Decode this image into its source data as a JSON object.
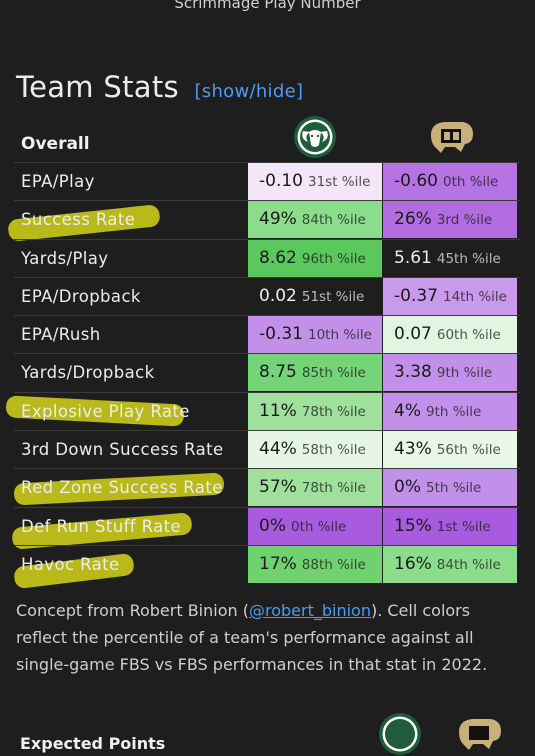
{
  "top_caption": "Scrimmage Play Number",
  "section_title": "Team Stats",
  "toggle_label": "[show/hide]",
  "table_header": "Overall",
  "rows": [
    {
      "name": "EPA/Play",
      "a_val": "-0.10",
      "a_pct": "31st %ile",
      "b_val": "-0.60",
      "b_pct": "0th %ile",
      "a_color": "#f2e6f8",
      "b_color": "#b573e4"
    },
    {
      "name": "Success Rate",
      "a_val": "49%",
      "a_pct": "84th %ile",
      "b_val": "26%",
      "b_pct": "3rd %ile",
      "a_color": "#8bdc8b",
      "b_color": "#b16de0"
    },
    {
      "name": "Yards/Play",
      "a_val": "8.62",
      "a_pct": "96th %ile",
      "b_val": "5.61",
      "b_pct": "45th %ile",
      "a_color": "#5ac85d",
      "b_color": "#1e1e1f"
    },
    {
      "name": "EPA/Dropback",
      "a_val": "0.02",
      "a_pct": "51st %ile",
      "b_val": "-0.37",
      "b_pct": "14th %ile",
      "a_color": "#1e1e1f",
      "b_color": "#c999ec"
    },
    {
      "name": "EPA/Rush",
      "a_val": "-0.31",
      "a_pct": "10th %ile",
      "b_val": "0.07",
      "b_pct": "60th %ile",
      "a_color": "#c290e9",
      "b_color": "#e2f5e1"
    },
    {
      "name": "Yards/Dropback",
      "a_val": "8.75",
      "a_pct": "85th %ile",
      "b_val": "3.38",
      "b_pct": "9th %ile",
      "a_color": "#74d477",
      "b_color": "#c290e9"
    },
    {
      "name": "Explosive Play Rate",
      "a_val": "11%",
      "a_pct": "78th %ile",
      "b_val": "4%",
      "b_pct": "9th %ile",
      "a_color": "#9ee09c",
      "b_color": "#c290e9"
    },
    {
      "name": "3rd Down Success Rate",
      "a_val": "44%",
      "a_pct": "58th %ile",
      "b_val": "43%",
      "b_pct": "56th %ile",
      "a_color": "#e6f6e4",
      "b_color": "#e8f7e6"
    },
    {
      "name": "Red Zone Success Rate",
      "a_val": "57%",
      "a_pct": "78th %ile",
      "b_val": "0%",
      "b_pct": "5th %ile",
      "a_color": "#9ee09c",
      "b_color": "#c290e9"
    },
    {
      "name": "Def Run Stuff Rate",
      "a_val": "0%",
      "a_pct": "0th %ile",
      "b_val": "15%",
      "b_pct": "1st %ile",
      "a_color": "#a85bde",
      "b_color": "#a85bde"
    },
    {
      "name": "Havoc Rate",
      "a_val": "17%",
      "a_pct": "88th %ile",
      "b_val": "16%",
      "b_pct": "84th %ile",
      "a_color": "#6fd26f",
      "b_color": "#8bdc8b"
    }
  ],
  "footnote_pre": "Concept from Robert Binion (",
  "footnote_link": "@robert_binion",
  "footnote_post": "). Cell colors reflect the percentile of a team's performance against all single-game FBS vs FBS performances in that stat in 2022.",
  "next_section": "Expected Points",
  "colors": {
    "link": "#4a9cf5",
    "highlight": "#e6e61a",
    "csu_green": "#1e5c3a"
  },
  "icons": {
    "team_a": "csu-ram-logo-icon",
    "team_b": "colorado-buffalo-logo-icon"
  }
}
